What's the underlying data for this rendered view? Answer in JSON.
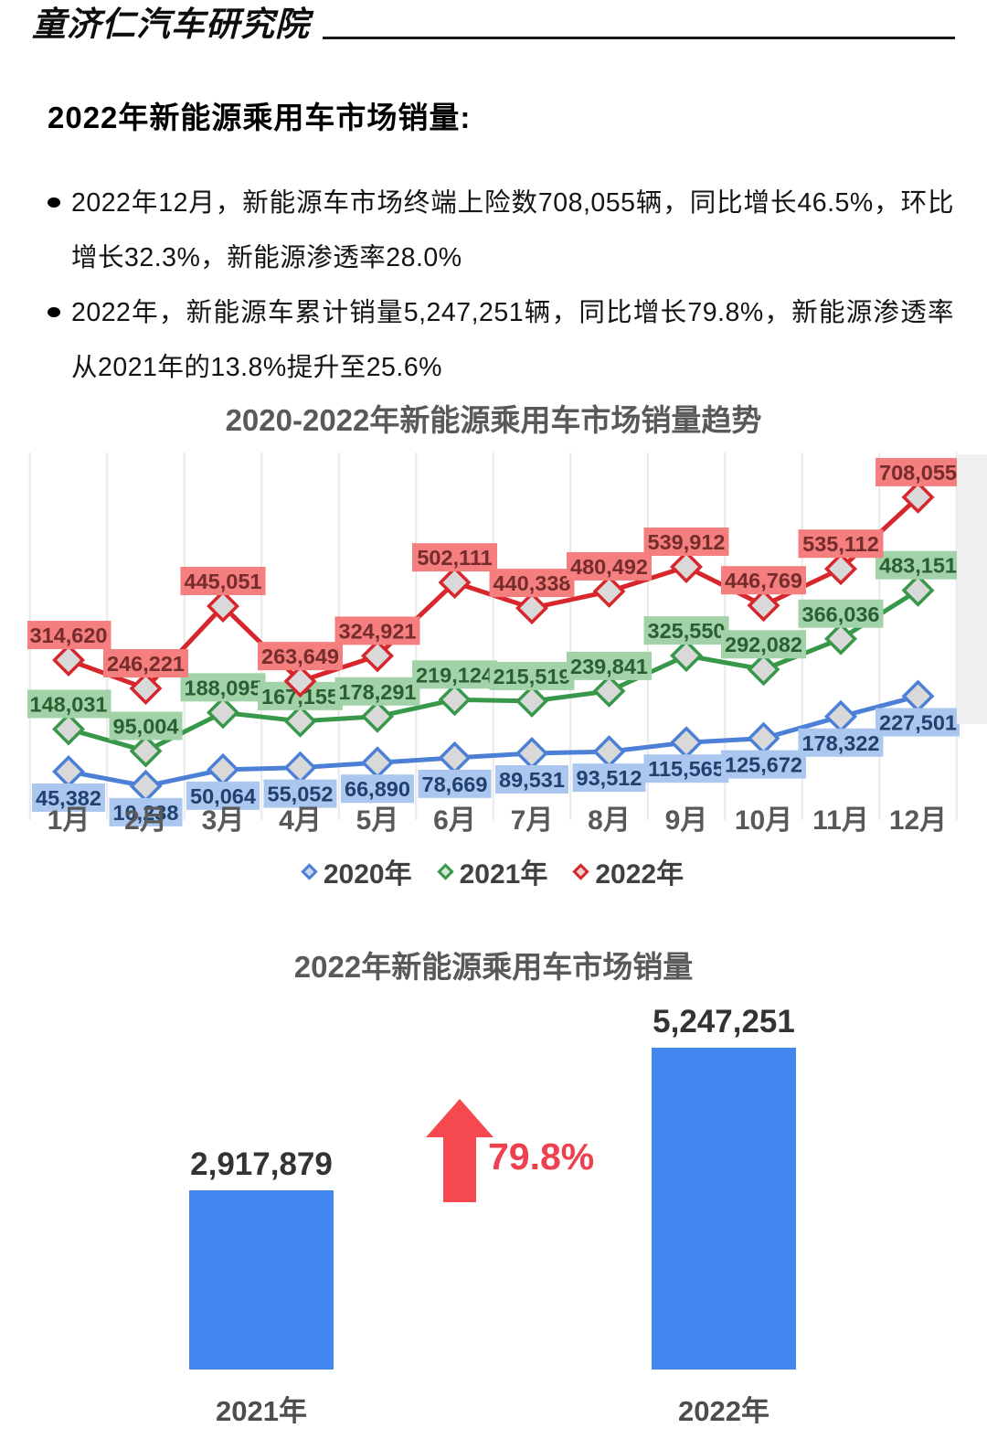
{
  "header": {
    "logo": "童济仁汽车研究院"
  },
  "intro": {
    "title": "2022年新能源乘用车市场销量:",
    "bullets": [
      "2022年12月，新能源车市场终端上险数708,055辆，同比增长46.5%，环比增长32.3%，新能源渗透率28.0%",
      "2022年，新能源车累计销量5,247,251辆，同比增长79.8%，新能源渗透率从2021年的13.8%提升至25.6%"
    ]
  },
  "chart_data": [
    {
      "type": "line",
      "title": "2020-2022年新能源乘用车市场销量趋势",
      "categories": [
        "1月",
        "2月",
        "3月",
        "4月",
        "5月",
        "6月",
        "7月",
        "8月",
        "9月",
        "10月",
        "11月",
        "12月"
      ],
      "series": [
        {
          "name": "2020年",
          "color": "#4c80d6",
          "label_bg": "#abc7ef",
          "label_color": "#20406e",
          "legend_fill": "#c9d7f1",
          "label_position": "below",
          "values": [
            45382,
            10238,
            50064,
            55052,
            66890,
            78669,
            89531,
            93512,
            115565,
            125672,
            178322,
            227501
          ]
        },
        {
          "name": "2021年",
          "color": "#38984a",
          "label_bg": "#a2d2a8",
          "label_color": "#2b5f31",
          "legend_fill": "#d3e9d6",
          "label_position": "above",
          "values": [
            148031,
            95004,
            188095,
            167155,
            178291,
            219124,
            215519,
            239841,
            325550,
            292082,
            366036,
            483151
          ]
        },
        {
          "name": "2022年",
          "color": "#d7262c",
          "label_bg": "#f57e7e",
          "label_color": "#752c2c",
          "legend_fill": "#f3d0d0",
          "label_position": "above",
          "values": [
            314620,
            246221,
            445051,
            263649,
            324921,
            502111,
            440338,
            480492,
            539912,
            446769,
            535112,
            708055
          ]
        }
      ],
      "ylim": [
        0,
        805000
      ],
      "grid": "vertical",
      "gridline_color": "#e9e9e9",
      "axis_text_color": "#595959",
      "marker_fill": "#d9d9d9",
      "legend_position": "bottom"
    },
    {
      "type": "bar",
      "title": "2022年新能源乘用车市场销量",
      "categories": [
        "2021年",
        "2022年"
      ],
      "values": [
        2917879,
        5247251
      ],
      "bar_color": "#4286f0",
      "growth_label": "79.8%",
      "growth_color": "#ee4150",
      "arrow_color": "#f5494f",
      "ylim": [
        0,
        5800000
      ]
    }
  ]
}
